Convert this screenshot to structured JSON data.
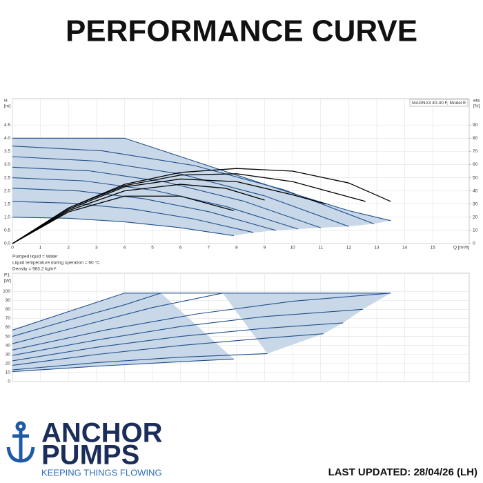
{
  "header": {
    "title": "PERFORMANCE CURVE"
  },
  "chart_data": [
    {
      "type": "line",
      "title": "MAGNA3 40-40 F, Model E",
      "ylabel": [
        "H",
        "[m]"
      ],
      "y2label": [
        "eta",
        "[%]"
      ],
      "xlabel": "Q [m³/h]",
      "notes": [
        "Pumped liquid = Water",
        "Liquid temperature during operation = 60 °C",
        "Density = 983.2 kg/m³"
      ],
      "xlim": [
        0,
        16.3
      ],
      "xticks": [
        0,
        1,
        2,
        3,
        4,
        5,
        6,
        7,
        8,
        9,
        10,
        11,
        12,
        13,
        14,
        15
      ],
      "ylim": [
        0,
        5.5
      ],
      "yticks": [
        {
          "value": 0,
          "label": "0.0"
        },
        0.5,
        {
          "value": 1,
          "label": "1.0"
        },
        1.5,
        {
          "value": 2,
          "label": "2.0"
        },
        2.5,
        {
          "value": 3,
          "label": "3.0"
        },
        3.5,
        {
          "value": 4,
          "label": "4.0"
        },
        4.5
      ],
      "y2lim": [
        0,
        110
      ],
      "y2ticks": [
        0,
        10,
        20,
        30,
        40,
        50,
        60,
        70,
        80,
        90
      ],
      "grid": true,
      "fill_color": "#c8d8e8",
      "series": [
        {
          "color": "#1f4e8c",
          "x": [
            0,
            4,
            6,
            8,
            10,
            12,
            13.5
          ],
          "values": [
            4.0,
            4.0,
            3.3,
            2.6,
            1.9,
            1.25,
            0.87
          ]
        },
        {
          "color": "#1f4e8c",
          "x": [
            0,
            3.2,
            6.5,
            9.7,
            12.9
          ],
          "values": [
            3.7,
            3.52,
            2.96,
            2.04,
            0.75
          ]
        },
        {
          "color": "#1f4e8c",
          "x": [
            0,
            3,
            6,
            9,
            12
          ],
          "values": [
            3.3,
            3.13,
            2.64,
            1.81,
            0.65
          ]
        },
        {
          "color": "#1f4e8c",
          "x": [
            0,
            2.75,
            5.5,
            8.25,
            11
          ],
          "values": [
            2.9,
            2.76,
            2.33,
            1.61,
            0.6
          ]
        },
        {
          "color": "#1f4e8c",
          "x": [
            0,
            2.55,
            5.1,
            7.65,
            10.2
          ],
          "values": [
            2.5,
            2.38,
            2.01,
            1.4,
            0.55
          ]
        },
        {
          "color": "#1f4e8c",
          "x": [
            0,
            2.35,
            4.7,
            7.05,
            9.4
          ],
          "values": [
            2.1,
            2.0,
            1.7,
            1.2,
            0.5
          ]
        },
        {
          "color": "#1f4e8c",
          "x": [
            0,
            2.15,
            4.3,
            6.45,
            8.6
          ],
          "values": [
            1.6,
            1.53,
            1.31,
            0.94,
            0.42
          ]
        },
        {
          "color": "#1f4e8c",
          "x": [
            0,
            1.98,
            3.95,
            5.93,
            7.9
          ],
          "values": [
            1.0,
            0.96,
            0.83,
            0.61,
            0.3
          ]
        },
        {
          "color": "#000000",
          "axis": "y2",
          "x": [
            0,
            2,
            4,
            6,
            8,
            10,
            12,
            13.5
          ],
          "values": [
            0,
            27,
            45,
            54,
            57,
            55,
            46,
            32
          ]
        },
        {
          "color": "#000000",
          "axis": "y2",
          "x": [
            0,
            2,
            4,
            6,
            8,
            10,
            12.6
          ],
          "values": [
            0,
            27,
            44,
            52,
            53,
            47,
            32
          ]
        },
        {
          "color": "#000000",
          "axis": "y2",
          "x": [
            0,
            2,
            4,
            6,
            8,
            10,
            11.2
          ],
          "values": [
            0,
            26,
            43,
            49,
            47,
            37,
            30
          ]
        },
        {
          "color": "#000000",
          "axis": "y2",
          "x": [
            0,
            2,
            4,
            6,
            7.6,
            9
          ],
          "values": [
            0,
            25,
            40,
            45,
            42,
            33
          ]
        },
        {
          "color": "#000000",
          "axis": "y2",
          "x": [
            0,
            2,
            4,
            6,
            7.9
          ],
          "values": [
            0,
            24,
            36,
            36,
            25
          ]
        }
      ]
    },
    {
      "type": "line",
      "ylabel": [
        "P1",
        "[W]"
      ],
      "xlim": [
        0,
        16.3
      ],
      "xticks": [
        0,
        1,
        2,
        3,
        4,
        5,
        6,
        7,
        8,
        9,
        10,
        11,
        12,
        13,
        14,
        15
      ],
      "show_xtick_labels": false,
      "ylim": [
        0,
        120
      ],
      "yticks": [
        0,
        10,
        20,
        30,
        40,
        50,
        60,
        70,
        80,
        90,
        100
      ],
      "grid": true,
      "fill_color": "#c8d8e8",
      "series": [
        {
          "color": "#1f4e8c",
          "x": [
            0,
            4,
            13.5
          ],
          "values": [
            57,
            98,
            98
          ]
        },
        {
          "color": "#1f4e8c",
          "x": [
            0,
            2,
            4,
            5.3
          ],
          "values": [
            50,
            68,
            85,
            98
          ]
        },
        {
          "color": "#1f4e8c",
          "x": [
            0,
            2.5,
            5,
            7.5
          ],
          "values": [
            42,
            62,
            82,
            98
          ]
        },
        {
          "color": "#1f4e8c",
          "x": [
            0,
            3.3,
            6.6,
            10,
            13.5
          ],
          "values": [
            35,
            57,
            75,
            89,
            98
          ]
        },
        {
          "color": "#1f4e8c",
          "x": [
            0,
            3,
            6,
            9,
            12.5
          ],
          "values": [
            29,
            46,
            61,
            72,
            80
          ]
        },
        {
          "color": "#1f4e8c",
          "x": [
            0,
            3,
            6,
            9,
            11.8
          ],
          "values": [
            23,
            38,
            50,
            59,
            65
          ]
        },
        {
          "color": "#1f4e8c",
          "x": [
            0,
            3,
            6,
            9,
            11.1
          ],
          "values": [
            18,
            30,
            40,
            48,
            53
          ]
        },
        {
          "color": "#1f4e8c",
          "x": [
            0,
            3,
            6,
            9.1
          ],
          "values": [
            13,
            21,
            27,
            31
          ]
        },
        {
          "color": "#1f4e8c",
          "x": [
            0,
            3,
            6,
            7.9
          ],
          "values": [
            11,
            17,
            22,
            25
          ]
        }
      ]
    }
  ],
  "logo": {
    "line1": "ANCHOR",
    "line2": "PUMPS",
    "tagline": "KEEPING THINGS FLOWING"
  },
  "footer": {
    "updated": "LAST UPDATED: 28/04/26 (LH)"
  }
}
